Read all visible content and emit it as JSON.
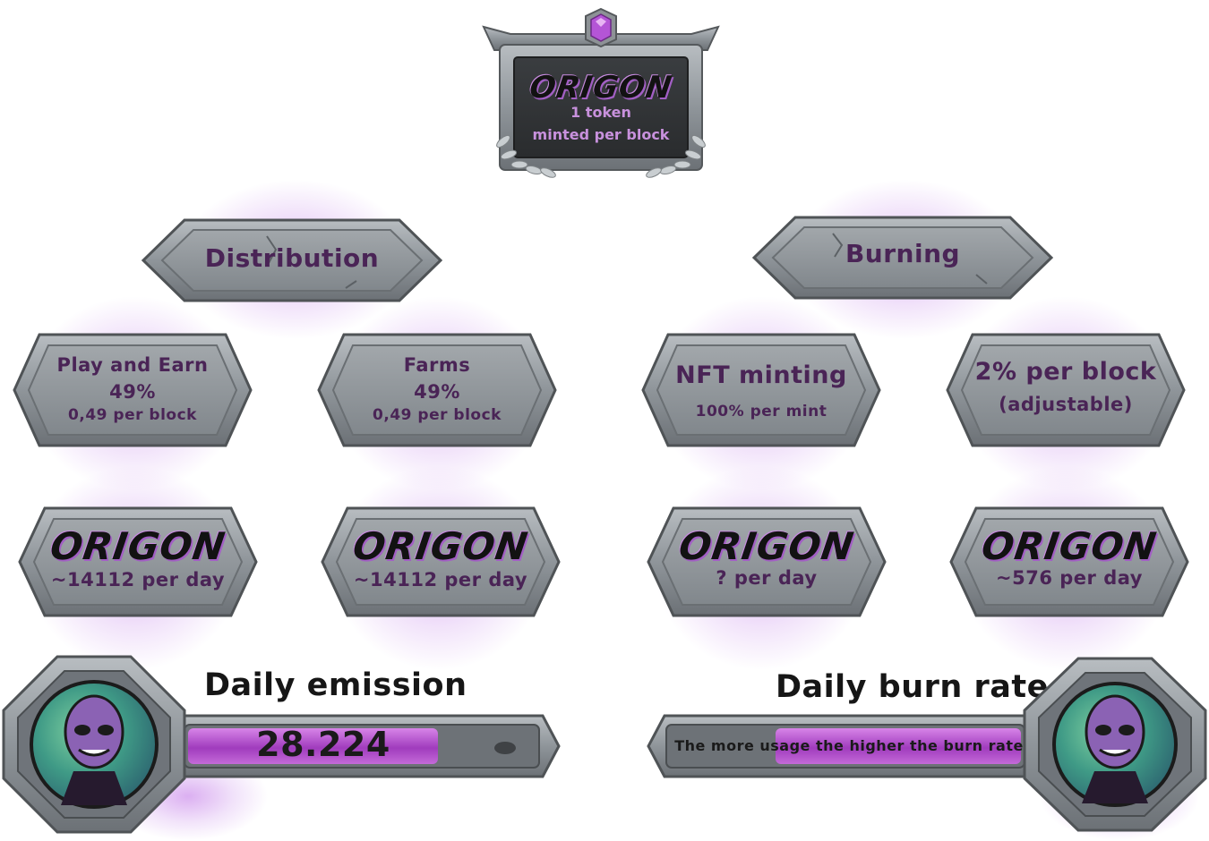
{
  "top_plaque": {
    "brand": "ORIGON",
    "line1": "1 token",
    "line2": "minted per block",
    "gem_color": "#b455d6"
  },
  "branches": {
    "distribution": {
      "label": "Distribution"
    },
    "burning": {
      "label": "Burning"
    }
  },
  "cards": [
    {
      "line1": "Play and Earn",
      "line2": "49%",
      "line3": "0,49 per block"
    },
    {
      "line1": "Farms",
      "line2": "49%",
      "line3": "0,49 per block"
    },
    {
      "line1": "NFT minting",
      "line2": "100% per mint"
    },
    {
      "line1": "2% per block",
      "line2": "(adjustable)"
    }
  ],
  "tokens": [
    {
      "brand": "ORIGON",
      "amount": "~14112 per day"
    },
    {
      "brand": "ORIGON",
      "amount": "~14112 per day"
    },
    {
      "brand": "ORIGON",
      "amount": "? per day"
    },
    {
      "brand": "ORIGON",
      "amount": "~576 per day"
    }
  ],
  "emission": {
    "title": "Daily emission",
    "value": "28.224",
    "fill_ratio": 0.72
  },
  "burn": {
    "title": "Daily burn rate",
    "text": "The more usage the higher the burn rate",
    "fill_ratio": 0.7
  },
  "colors": {
    "stone": "#8e9499",
    "stone_dark": "#5d6266",
    "purple_text": "#4a2456",
    "accent": "#b455d6"
  }
}
